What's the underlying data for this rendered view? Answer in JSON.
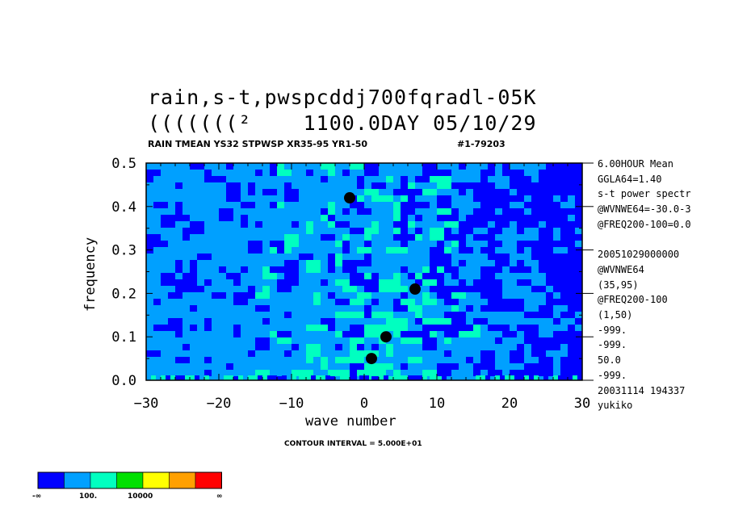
{
  "header": {
    "title_line1": "rain,s-t,pwspcddj700fqradl-05K",
    "title_line2": "(((((((²    1100.0DAY 05/10/29",
    "subtitle": "RAIN TMEAN YS32 STPWSP XR35-95 YR1-50",
    "subtitle_right": "#1-79203"
  },
  "side_info": [
    "6.00HOUR Mean",
    "GGLA64=1.40",
    "s-t power spectr",
    "@WVNWE64=-30.0-3",
    "@FREQ200-100=0.0",
    "",
    "20051029000000",
    "@WVNWE64",
    "(35,95)",
    "@FREQ200-100",
    "(1,50)",
    "-999.",
    "-999.",
    "50.0",
    "-999.",
    "20031114 194337",
    "yukiko"
  ],
  "contour_interval": "CONTOUR INTERVAL = 5.000E+01",
  "colorbar": {
    "colors": [
      "#0000ff",
      "#00a0ff",
      "#00ffc0",
      "#00e000",
      "#ffff00",
      "#ffa000",
      "#ff0000"
    ],
    "labels": [
      "-∞",
      "100.",
      "10000",
      "∞"
    ]
  },
  "chart_data": {
    "type": "heatmap",
    "title": "rain,s-t,pwspcddj700fqradl-05K",
    "xlabel": "wave number",
    "ylabel": "frequency",
    "xlim": [
      -30,
      30
    ],
    "ylim": [
      0.0,
      0.5
    ],
    "xticks": [
      "−30",
      "−20",
      "−10",
      "0",
      "10",
      "20",
      "30"
    ],
    "yticks": [
      "0.0",
      "0.1",
      "0.2",
      "0.3",
      "0.4",
      "0.5"
    ],
    "colors": {
      "background": "#00a0ff",
      "low": "#0000ff",
      "mid": "#00ffc0",
      "high": "#00e000",
      "peak": "#000000"
    },
    "peaks": [
      {
        "x": 3,
        "y": 0.1,
        "label": ""
      },
      {
        "x": 1,
        "y": 0.05,
        "label": ""
      },
      {
        "x": 7,
        "y": 0.21,
        "label": ""
      },
      {
        "x": -2,
        "y": 0.42,
        "label": ""
      }
    ]
  }
}
